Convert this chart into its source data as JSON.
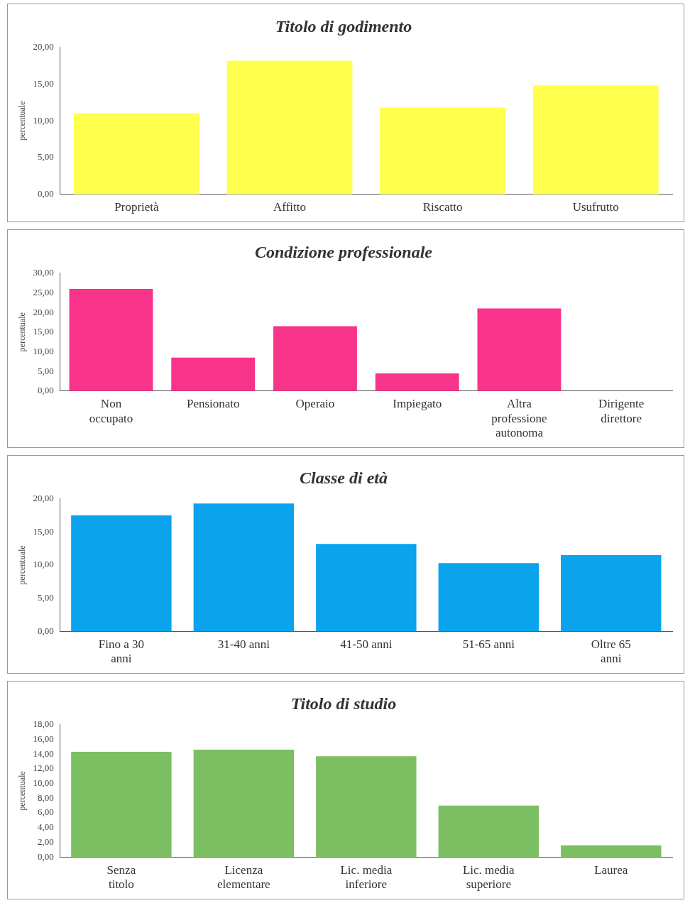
{
  "chart_data": [
    {
      "type": "bar",
      "title": "Titolo di godimento",
      "ylabel": "percentuale",
      "categories": [
        "Proprietà",
        "Affitto",
        "Riscatto",
        "Usufrutto"
      ],
      "values": [
        11.0,
        18.2,
        11.8,
        14.8
      ],
      "color": "#ffff4d",
      "ylim": [
        0,
        20
      ],
      "yticks": [
        {
          "value": 0,
          "label": "0,00"
        },
        {
          "value": 5,
          "label": "5,00"
        },
        {
          "value": 10,
          "label": "10,00"
        },
        {
          "value": 15,
          "label": "15,00"
        },
        {
          "value": 20,
          "label": "20,00"
        }
      ],
      "grid": false,
      "legend": false
    },
    {
      "type": "bar",
      "title": "Condizione professionale",
      "ylabel": "percentuale",
      "categories": [
        "Non occupato",
        "Pensionato",
        "Operaio",
        "Impiegato",
        "Altra professione autonoma",
        "Dirigente direttore"
      ],
      "values": [
        26,
        8.5,
        16.5,
        4.5,
        21,
        0
      ],
      "color": "#f7338a",
      "ylim": [
        0,
        30
      ],
      "yticks": [
        {
          "value": 0,
          "label": "0,00"
        },
        {
          "value": 5,
          "label": "5,00"
        },
        {
          "value": 10,
          "label": "10,00"
        },
        {
          "value": 15,
          "label": "15,00"
        },
        {
          "value": 20,
          "label": "20,00"
        },
        {
          "value": 25,
          "label": "25,00"
        },
        {
          "value": 30,
          "label": "30,00"
        }
      ],
      "grid": false,
      "legend": false
    },
    {
      "type": "bar",
      "title": "Classe di età",
      "ylabel": "percentuale",
      "categories": [
        "Fino a 30 anni",
        "31-40 anni",
        "41-50 anni",
        "51-65 anni",
        "Oltre 65 anni"
      ],
      "values": [
        17.5,
        19.3,
        13.2,
        10.3,
        11.5
      ],
      "color": "#0aa3ec",
      "ylim": [
        0,
        20
      ],
      "yticks": [
        {
          "value": 0,
          "label": "0,00"
        },
        {
          "value": 5,
          "label": "5,00"
        },
        {
          "value": 10,
          "label": "10,00"
        },
        {
          "value": 15,
          "label": "15,00"
        },
        {
          "value": 20,
          "label": "20,00"
        }
      ],
      "grid": false,
      "legend": false
    },
    {
      "type": "bar",
      "title": "Titolo di studio",
      "ylabel": "percentuale",
      "categories": [
        "Senza titolo",
        "Licenza elementare",
        "Lic. media inferiore",
        "Lic. media superiore",
        "Laurea"
      ],
      "values": [
        14.3,
        14.6,
        13.7,
        7.0,
        1.6
      ],
      "color": "#7cbf62",
      "ylim": [
        0,
        18
      ],
      "yticks": [
        {
          "value": 0,
          "label": "0,00"
        },
        {
          "value": 2,
          "label": "2,00"
        },
        {
          "value": 4,
          "label": "4,00"
        },
        {
          "value": 6,
          "label": "6,00"
        },
        {
          "value": 8,
          "label": "8,00"
        },
        {
          "value": 10,
          "label": "10,00"
        },
        {
          "value": 12,
          "label": "12,00"
        },
        {
          "value": 14,
          "label": "14,00"
        },
        {
          "value": 16,
          "label": "16,00"
        },
        {
          "value": 18,
          "label": "18,00"
        }
      ],
      "grid": false,
      "legend": false
    }
  ]
}
